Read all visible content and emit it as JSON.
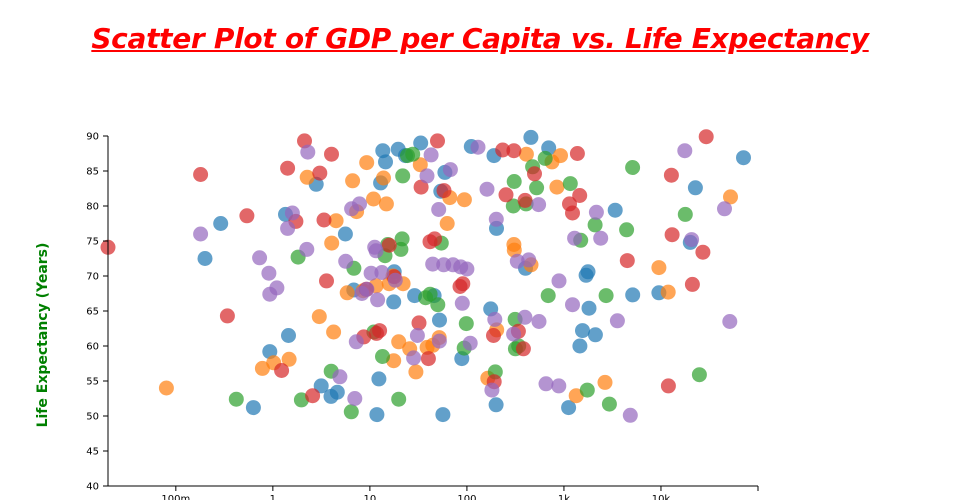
{
  "chart_data": {
    "type": "scatter",
    "title": "Scatter Plot of GDP per Capita vs. Life Expectancy",
    "xlabel": "",
    "ylabel": "Life Expectancy (Years)",
    "xscale": "log",
    "xlim": [
      0.02,
      100000
    ],
    "ylim": [
      40,
      90
    ],
    "xticks": [
      0.1,
      1,
      10,
      100,
      1000,
      10000
    ],
    "xtick_labels": [
      "100m",
      "1",
      "10",
      "100",
      "1k",
      "10k"
    ],
    "yticks": [
      40,
      45,
      50,
      55,
      60,
      65,
      70,
      75,
      80,
      85,
      90
    ],
    "grid": false,
    "colors": {
      "blue": "#1f77b4",
      "orange": "#ff7f0e",
      "green": "#2ca02c",
      "red": "#d62728",
      "purple": "#9467bd"
    },
    "series": [
      {
        "color": "#1f77b4",
        "points": [
          [
            0.2,
            72.5
          ],
          [
            0.29,
            77.5
          ],
          [
            0.63,
            51.2
          ],
          [
            0.93,
            59.2
          ],
          [
            1.35,
            78.8
          ],
          [
            1.45,
            61.5
          ],
          [
            2.8,
            83.1
          ],
          [
            3.15,
            54.3
          ],
          [
            3.97,
            52.8
          ],
          [
            4.62,
            53.4
          ],
          [
            5.59,
            76
          ],
          [
            6.82,
            68
          ],
          [
            11.8,
            50.2
          ],
          [
            12.4,
            55.3
          ],
          [
            12.9,
            83.3
          ],
          [
            13.6,
            87.9
          ],
          [
            14.5,
            86.3
          ],
          [
            17.6,
            66.3
          ],
          [
            17.8,
            70.6
          ],
          [
            19.6,
            88.1
          ],
          [
            23.3,
            87.2
          ],
          [
            28.9,
            67.2
          ],
          [
            33.4,
            89
          ],
          [
            45.9,
            67.2
          ],
          [
            52.2,
            63.7
          ],
          [
            53.8,
            82.1
          ],
          [
            56.5,
            50.2
          ],
          [
            59.3,
            84.8
          ],
          [
            88.5,
            58.2
          ],
          [
            111,
            88.5
          ],
          [
            176,
            65.3
          ],
          [
            190,
            87.2
          ],
          [
            200,
            51.6
          ],
          [
            202,
            76.8
          ],
          [
            402,
            71.1
          ],
          [
            457,
            89.8
          ],
          [
            697,
            88.3
          ],
          [
            1117,
            51.2
          ],
          [
            1460,
            60
          ],
          [
            1553,
            62.2
          ],
          [
            1692,
            70.1
          ],
          [
            1769,
            70.6
          ],
          [
            1812,
            65.4
          ],
          [
            2112,
            61.6
          ],
          [
            3374,
            79.4
          ],
          [
            5115,
            67.3
          ],
          [
            9528,
            67.6
          ],
          [
            20043,
            74.8
          ],
          [
            22620,
            82.6
          ],
          [
            70880,
            86.9
          ]
        ]
      },
      {
        "color": "#ff7f0e",
        "points": [
          [
            0.08,
            54
          ],
          [
            0.78,
            56.8
          ],
          [
            1.02,
            57.6
          ],
          [
            1.47,
            58.1
          ],
          [
            2.26,
            84.1
          ],
          [
            3.01,
            64.2
          ],
          [
            4.04,
            74.7
          ],
          [
            4.23,
            62
          ],
          [
            4.49,
            77.9
          ],
          [
            5.84,
            67.6
          ],
          [
            6.64,
            83.6
          ],
          [
            7.3,
            79.2
          ],
          [
            8.54,
            67.9
          ],
          [
            9.27,
            86.2
          ],
          [
            10.9,
            81
          ],
          [
            11.6,
            68.6
          ],
          [
            13.8,
            84
          ],
          [
            14.8,
            80.3
          ],
          [
            15.8,
            68.9
          ],
          [
            17.3,
            70
          ],
          [
            17.6,
            57.9
          ],
          [
            19.8,
            60.6
          ],
          [
            22,
            68.9
          ],
          [
            25.7,
            59.6
          ],
          [
            29.8,
            56.3
          ],
          [
            33.1,
            85.9
          ],
          [
            38.9,
            59.8
          ],
          [
            44.5,
            60.1
          ],
          [
            51.8,
            61.2
          ],
          [
            62.7,
            77.5
          ],
          [
            66.7,
            81.2
          ],
          [
            94.2,
            80.9
          ],
          [
            164,
            55.4
          ],
          [
            203,
            62.3
          ],
          [
            305,
            74.5
          ],
          [
            308,
            73.7
          ],
          [
            410,
            87.4
          ],
          [
            458,
            71.6
          ],
          [
            754,
            86.3
          ],
          [
            847,
            82.7
          ],
          [
            921,
            87.2
          ],
          [
            1338,
            52.9
          ],
          [
            2650,
            54.8
          ],
          [
            9528,
            71.2
          ],
          [
            11868,
            67.7
          ],
          [
            52062,
            81.3
          ]
        ]
      },
      {
        "color": "#2ca02c",
        "points": [
          [
            0.42,
            52.4
          ],
          [
            1.82,
            72.7
          ],
          [
            1.97,
            52.3
          ],
          [
            3.99,
            56.4
          ],
          [
            6.43,
            50.6
          ],
          [
            6.85,
            71.1
          ],
          [
            11,
            62
          ],
          [
            13.5,
            58.5
          ],
          [
            14.3,
            72.9
          ],
          [
            15.3,
            74.5
          ],
          [
            19.8,
            52.4
          ],
          [
            20.9,
            73.8
          ],
          [
            21.5,
            75.3
          ],
          [
            21.8,
            84.3
          ],
          [
            24.4,
            87.2
          ],
          [
            27.6,
            87.4
          ],
          [
            37.5,
            66.9
          ],
          [
            41.7,
            67.4
          ],
          [
            50.1,
            65.9
          ],
          [
            54.4,
            74.7
          ],
          [
            93.8,
            59.7
          ],
          [
            98.6,
            63.2
          ],
          [
            196,
            56.3
          ],
          [
            301,
            80
          ],
          [
            307,
            83.5
          ],
          [
            314,
            63.8
          ],
          [
            316,
            59.6
          ],
          [
            342,
            60
          ],
          [
            407,
            80.3
          ],
          [
            475,
            85.6
          ],
          [
            523,
            82.6
          ],
          [
            641,
            86.8
          ],
          [
            689,
            67.2
          ],
          [
            1162,
            83.2
          ],
          [
            1488,
            75.1
          ],
          [
            1741,
            53.7
          ],
          [
            2093,
            77.3
          ],
          [
            2720,
            67.2
          ],
          [
            2939,
            51.7
          ],
          [
            4422,
            76.6
          ],
          [
            5106,
            85.5
          ],
          [
            17804,
            78.8
          ],
          [
            24863,
            55.9
          ]
        ]
      },
      {
        "color": "#d62728",
        "points": [
          [
            0.02,
            74.1
          ],
          [
            0.18,
            84.5
          ],
          [
            0.34,
            64.3
          ],
          [
            0.54,
            78.6
          ],
          [
            1.23,
            56.5
          ],
          [
            1.42,
            85.4
          ],
          [
            1.73,
            77.8
          ],
          [
            2.12,
            89.3
          ],
          [
            2.57,
            52.9
          ],
          [
            3.05,
            84.7
          ],
          [
            3.37,
            78
          ],
          [
            3.57,
            69.3
          ],
          [
            4.02,
            87.4
          ],
          [
            8.65,
            61.3
          ],
          [
            9.18,
            68.1
          ],
          [
            11.7,
            61.8
          ],
          [
            12.6,
            62.2
          ],
          [
            15.8,
            74.4
          ],
          [
            17.8,
            69.9
          ],
          [
            32.1,
            63.3
          ],
          [
            33.7,
            82.7
          ],
          [
            40.1,
            58.2
          ],
          [
            41.6,
            74.9
          ],
          [
            46.4,
            75.3
          ],
          [
            49.8,
            89.3
          ],
          [
            58.1,
            82.2
          ],
          [
            84.8,
            68.5
          ],
          [
            90.7,
            68.9
          ],
          [
            188,
            61.5
          ],
          [
            191,
            54.9
          ],
          [
            234,
            88
          ],
          [
            253,
            81.6
          ],
          [
            305,
            87.9
          ],
          [
            339,
            62.1
          ],
          [
            382,
            59.6
          ],
          [
            398,
            80.8
          ],
          [
            497,
            84.6
          ],
          [
            1140,
            80.3
          ],
          [
            1224,
            79
          ],
          [
            1376,
            87.5
          ],
          [
            1453,
            81.5
          ],
          [
            4501,
            72.2
          ],
          [
            11938,
            54.3
          ],
          [
            12808,
            84.4
          ],
          [
            13032,
            75.9
          ],
          [
            21097,
            68.8
          ],
          [
            27031,
            73.4
          ],
          [
            29217,
            89.9
          ]
        ]
      },
      {
        "color": "#9467bd",
        "points": [
          [
            0.18,
            76
          ],
          [
            0.73,
            72.6
          ],
          [
            0.91,
            70.4
          ],
          [
            0.93,
            67.4
          ],
          [
            1.1,
            68.3
          ],
          [
            1.42,
            76.8
          ],
          [
            1.59,
            79
          ],
          [
            2.24,
            73.8
          ],
          [
            2.29,
            87.7
          ],
          [
            4.91,
            55.6
          ],
          [
            5.64,
            72.1
          ],
          [
            6.48,
            79.6
          ],
          [
            6.99,
            52.5
          ],
          [
            7.24,
            60.6
          ],
          [
            7.81,
            80.3
          ],
          [
            8.27,
            67.5
          ],
          [
            9.32,
            68.1
          ],
          [
            10.3,
            70.4
          ],
          [
            11.2,
            74.1
          ],
          [
            11.6,
            73.6
          ],
          [
            12,
            66.6
          ],
          [
            13.3,
            70.5
          ],
          [
            18.3,
            69.4
          ],
          [
            28.2,
            58.3
          ],
          [
            30.9,
            61.5
          ],
          [
            38.8,
            84.3
          ],
          [
            42.8,
            87.3
          ],
          [
            44.4,
            71.7
          ],
          [
            51.2,
            79.5
          ],
          [
            52.1,
            60.7
          ],
          [
            57.6,
            71.6
          ],
          [
            67.6,
            85.2
          ],
          [
            71.8,
            71.6
          ],
          [
            86.3,
            71.3
          ],
          [
            89.7,
            66.1
          ],
          [
            100,
            71
          ],
          [
            108,
            60.4
          ],
          [
            130,
            88.4
          ],
          [
            161,
            82.4
          ],
          [
            181,
            53.7
          ],
          [
            194,
            63.8
          ],
          [
            201,
            78.1
          ],
          [
            303,
            61.7
          ],
          [
            331,
            72.1
          ],
          [
            396,
            64.1
          ],
          [
            433,
            72.3
          ],
          [
            548,
            80.2
          ],
          [
            553,
            63.5
          ],
          [
            653,
            54.6
          ],
          [
            886,
            54.3
          ],
          [
            889,
            69.3
          ],
          [
            1225,
            65.9
          ],
          [
            1289,
            75.4
          ],
          [
            2159,
            79.1
          ],
          [
            2392,
            75.4
          ],
          [
            3559,
            63.6
          ],
          [
            4825,
            50.1
          ],
          [
            17585,
            87.9
          ],
          [
            20695,
            75.2
          ],
          [
            45148,
            79.6
          ],
          [
            51244,
            63.5
          ]
        ]
      }
    ]
  }
}
